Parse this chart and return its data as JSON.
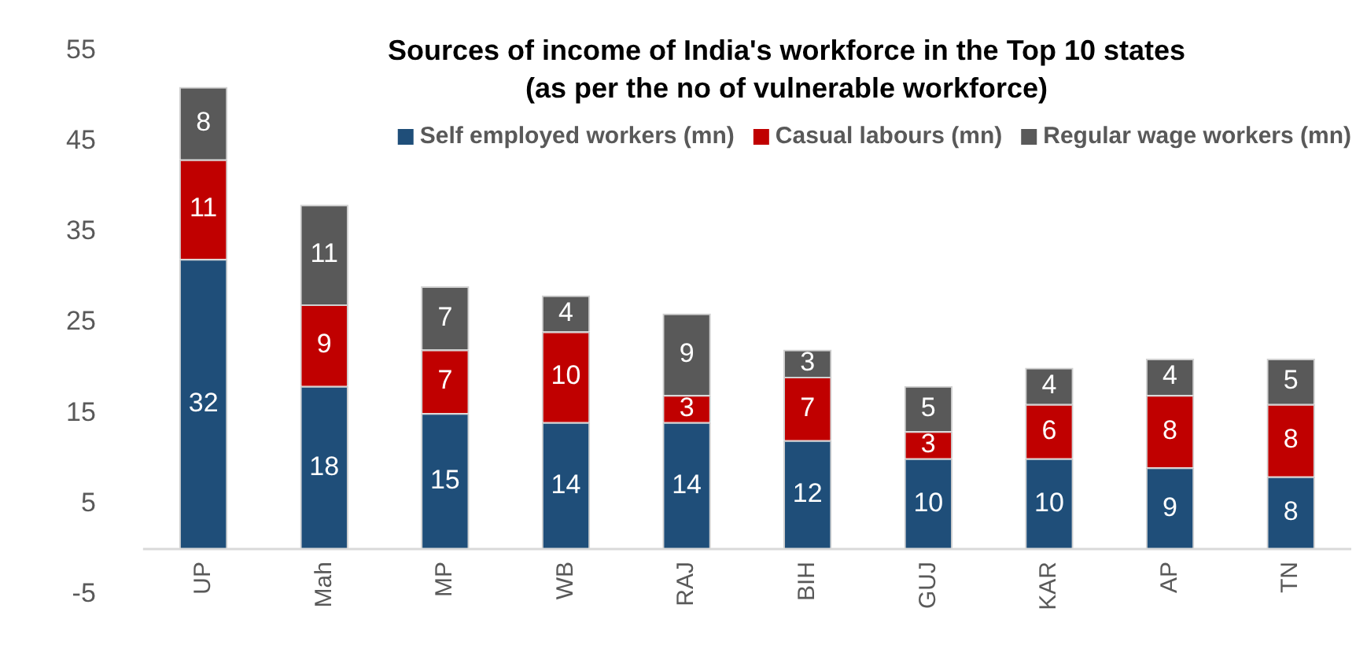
{
  "chart_data": {
    "type": "bar",
    "title": "Sources of income of India's workforce in the Top 10 states\n(as per the no of vulnerable workforce)",
    "categories": [
      "UP",
      "Mah",
      "MP",
      "WB",
      "RAJ",
      "BIH",
      "GUJ",
      "KAR",
      "AP",
      "TN"
    ],
    "series": [
      {
        "name": "Self employed workers (mn)",
        "color": "#1f4e79",
        "values": [
          32,
          18,
          15,
          14,
          14,
          12,
          10,
          10,
          9,
          8
        ]
      },
      {
        "name": "Casual labours (mn)",
        "color": "#c00000",
        "values": [
          11,
          9,
          7,
          10,
          3,
          7,
          3,
          6,
          8,
          8
        ]
      },
      {
        "name": "Regular wage workers (mn)",
        "color": "#595959",
        "values": [
          8,
          11,
          7,
          4,
          9,
          3,
          5,
          4,
          4,
          5
        ]
      }
    ],
    "stacked": true,
    "ylim": [
      -5,
      55
    ],
    "yticks": [
      -5,
      5,
      15,
      25,
      35,
      45,
      55
    ],
    "grid": false,
    "legend": "top right",
    "data_labels": true
  }
}
